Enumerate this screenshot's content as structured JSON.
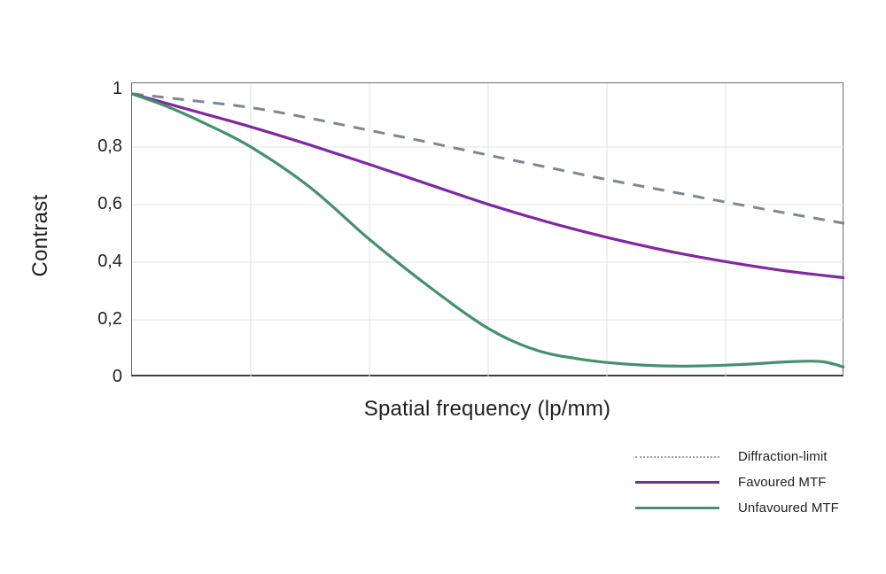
{
  "page": {
    "background": "#ffffff"
  },
  "chart_data": {
    "type": "line",
    "title": "",
    "xlabel": "Spatial frequency (lp/mm)",
    "ylabel": "Contrast",
    "xlim": [
      0,
      1
    ],
    "ylim": [
      0,
      1.02
    ],
    "grid": true,
    "x_divisions": 6,
    "x_tick_labels": [],
    "y_ticks": [
      {
        "value": 1.0,
        "label": "1"
      },
      {
        "value": 0.8,
        "label": "0,8"
      },
      {
        "value": 0.6,
        "label": "0,6"
      },
      {
        "value": 0.4,
        "label": "0,4"
      },
      {
        "value": 0.2,
        "label": "0,2"
      },
      {
        "value": 0.0,
        "label": "0"
      }
    ],
    "colors": {
      "gridline": "#e3e3e3",
      "frame": "#6b6b6b",
      "diffraction": "#7e8795",
      "favoured": "#8227a3",
      "unfavoured": "#45916c",
      "legend_dot_gray": "#9aa0a6"
    },
    "legend_position": "bottom-right",
    "series": [
      {
        "name": "Diffraction-limit",
        "slug": "diffraction-limit",
        "color": "#7e8795",
        "line_style": "dashed",
        "legend_style": "dotted",
        "points": [
          [
            0,
            0.985
          ],
          [
            0.083,
            0.962
          ],
          [
            0.167,
            0.937
          ],
          [
            0.25,
            0.9
          ],
          [
            0.333,
            0.858
          ],
          [
            0.417,
            0.816
          ],
          [
            0.5,
            0.772
          ],
          [
            0.583,
            0.73
          ],
          [
            0.667,
            0.687
          ],
          [
            0.75,
            0.648
          ],
          [
            0.833,
            0.609
          ],
          [
            0.917,
            0.571
          ],
          [
            1,
            0.535
          ]
        ]
      },
      {
        "name": "Favoured MTF",
        "slug": "favoured-mtf",
        "color": "#8227a3",
        "line_style": "solid",
        "legend_style": "solid",
        "points": [
          [
            0,
            0.985
          ],
          [
            0.083,
            0.928
          ],
          [
            0.167,
            0.87
          ],
          [
            0.25,
            0.807
          ],
          [
            0.333,
            0.74
          ],
          [
            0.417,
            0.67
          ],
          [
            0.5,
            0.601
          ],
          [
            0.583,
            0.54
          ],
          [
            0.667,
            0.486
          ],
          [
            0.75,
            0.44
          ],
          [
            0.833,
            0.402
          ],
          [
            0.917,
            0.37
          ],
          [
            1,
            0.346
          ]
        ]
      },
      {
        "name": "Unfavoured MTF",
        "slug": "unfavoured-mtf",
        "color": "#45916c",
        "line_style": "solid",
        "legend_style": "solid",
        "points": [
          [
            0,
            0.985
          ],
          [
            0.05,
            0.94
          ],
          [
            0.1,
            0.885
          ],
          [
            0.167,
            0.8
          ],
          [
            0.25,
            0.66
          ],
          [
            0.333,
            0.48
          ],
          [
            0.417,
            0.315
          ],
          [
            0.5,
            0.17
          ],
          [
            0.567,
            0.095
          ],
          [
            0.633,
            0.062
          ],
          [
            0.7,
            0.045
          ],
          [
            0.77,
            0.039
          ],
          [
            0.85,
            0.044
          ],
          [
            0.93,
            0.055
          ],
          [
            0.97,
            0.054
          ],
          [
            1,
            0.035
          ]
        ]
      }
    ]
  }
}
